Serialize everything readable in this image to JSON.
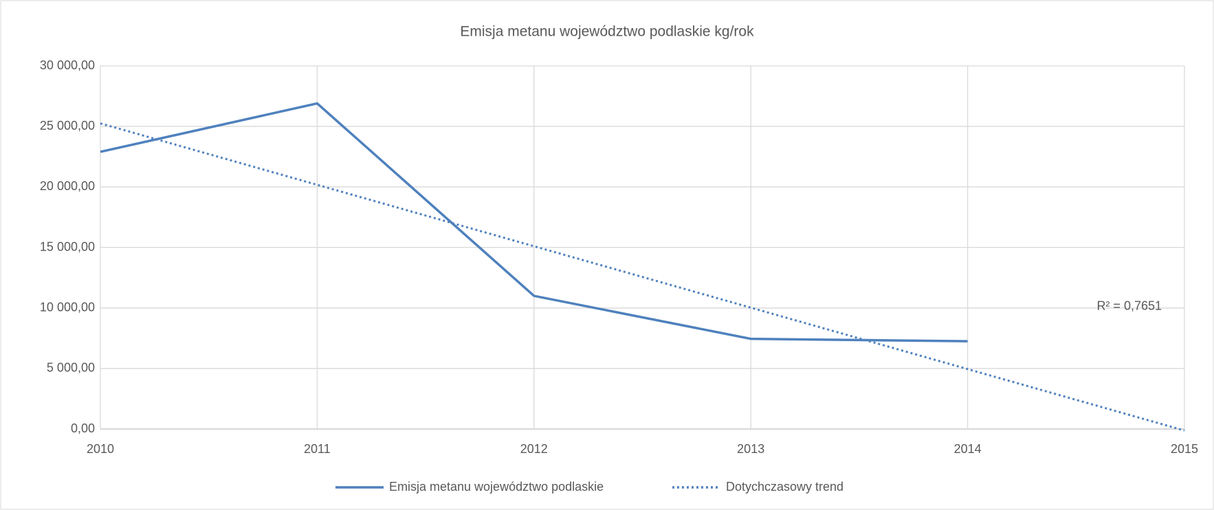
{
  "chart_data": {
    "type": "line",
    "title": "Emisja metanu województwo podlaskie kg/rok",
    "series": [
      {
        "name": "Emisja metanu województwo podlaskie",
        "color": "#4f81bd",
        "style": "solid",
        "x": [
          2010,
          2011,
          2012,
          2013,
          2014
        ],
        "values": [
          22900,
          26900,
          11000,
          7450,
          7250
        ]
      },
      {
        "name": "Dotychczasowy trend",
        "color": "#4f81bd",
        "style": "dotted",
        "x": [
          2010,
          2015
        ],
        "values": [
          25250,
          -125
        ]
      }
    ],
    "annotation": "R² = 0,7651",
    "xlim": [
      2010,
      2015
    ],
    "xticks": [
      2010,
      2011,
      2012,
      2013,
      2014,
      2015
    ],
    "ylim": [
      0,
      30000
    ],
    "yticks": [
      {
        "value": 0,
        "label": "0,00"
      },
      {
        "value": 5000,
        "label": "5 000,00"
      },
      {
        "value": 10000,
        "label": "10 000,00"
      },
      {
        "value": 15000,
        "label": "15 000,00"
      },
      {
        "value": 20000,
        "label": "20 000,00"
      },
      {
        "value": 25000,
        "label": "25 000,00"
      },
      {
        "value": 30000,
        "label": "30 000,00"
      }
    ],
    "grid": true,
    "legend": "bottom"
  }
}
